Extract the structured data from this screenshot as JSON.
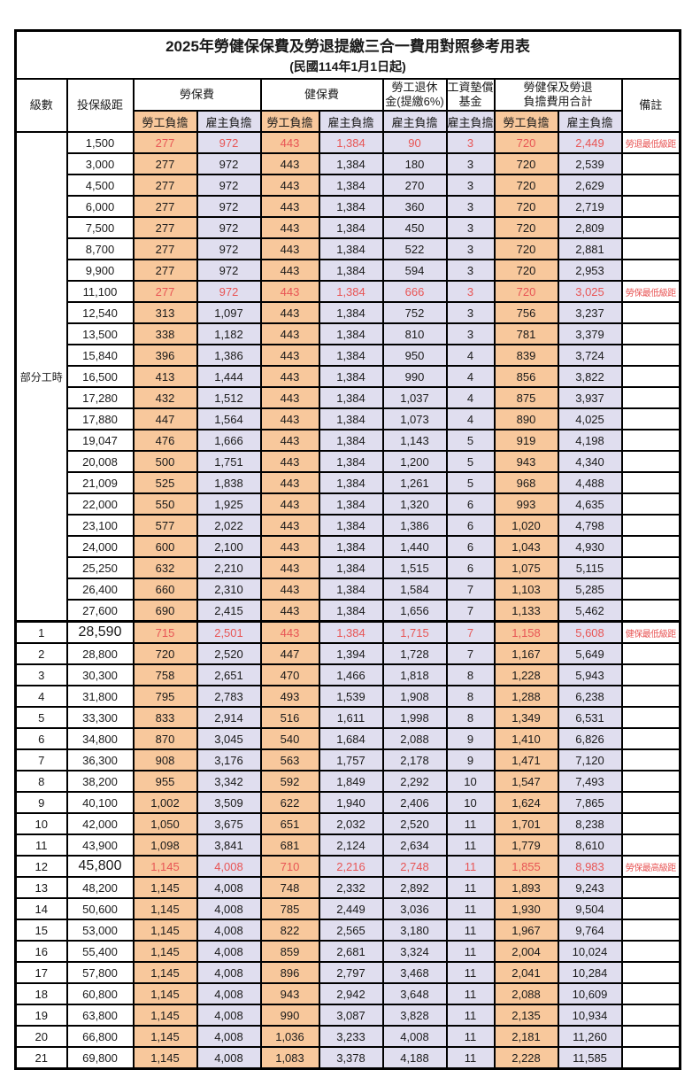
{
  "title": "2025年勞健保保費及勞退提繳三合一費用對照參考用表",
  "subtitle": "(民國114年1月1日起)",
  "colors": {
    "employee_bg": "#F8C89C",
    "employer_bg": "#E0DEEF",
    "highlight_text": "#E85555",
    "border": "#000000"
  },
  "header": {
    "level": "級數",
    "bracket": "投保級距",
    "labor_insurance": "勞保費",
    "health_insurance": "健保費",
    "pension_line1": "勞工退休",
    "pension_line2": "金(提繳6%)",
    "fund_line1": "工資墊償",
    "fund_line2": "基金",
    "total_line1": "勞健保及勞退",
    "total_line2": "負擔費用合計",
    "remark": "備註",
    "employee": "勞工負擔",
    "employer": "雇主負擔"
  },
  "part_time_label": "部分工時",
  "rows": [
    {
      "level": "",
      "bracket": "1,500",
      "li_emp": "277",
      "li_er": "972",
      "hi_emp": "443",
      "hi_er": "1,384",
      "pension": "90",
      "fund": "3",
      "tot_emp": "720",
      "tot_er": "2,449",
      "remark": "勞退最低級距",
      "hl": true
    },
    {
      "level": "",
      "bracket": "3,000",
      "li_emp": "277",
      "li_er": "972",
      "hi_emp": "443",
      "hi_er": "1,384",
      "pension": "180",
      "fund": "3",
      "tot_emp": "720",
      "tot_er": "2,539",
      "remark": ""
    },
    {
      "level": "",
      "bracket": "4,500",
      "li_emp": "277",
      "li_er": "972",
      "hi_emp": "443",
      "hi_er": "1,384",
      "pension": "270",
      "fund": "3",
      "tot_emp": "720",
      "tot_er": "2,629",
      "remark": ""
    },
    {
      "level": "",
      "bracket": "6,000",
      "li_emp": "277",
      "li_er": "972",
      "hi_emp": "443",
      "hi_er": "1,384",
      "pension": "360",
      "fund": "3",
      "tot_emp": "720",
      "tot_er": "2,719",
      "remark": ""
    },
    {
      "level": "",
      "bracket": "7,500",
      "li_emp": "277",
      "li_er": "972",
      "hi_emp": "443",
      "hi_er": "1,384",
      "pension": "450",
      "fund": "3",
      "tot_emp": "720",
      "tot_er": "2,809",
      "remark": ""
    },
    {
      "level": "",
      "bracket": "8,700",
      "li_emp": "277",
      "li_er": "972",
      "hi_emp": "443",
      "hi_er": "1,384",
      "pension": "522",
      "fund": "3",
      "tot_emp": "720",
      "tot_er": "2,881",
      "remark": ""
    },
    {
      "level": "",
      "bracket": "9,900",
      "li_emp": "277",
      "li_er": "972",
      "hi_emp": "443",
      "hi_er": "1,384",
      "pension": "594",
      "fund": "3",
      "tot_emp": "720",
      "tot_er": "2,953",
      "remark": ""
    },
    {
      "level": "",
      "bracket": "11,100",
      "li_emp": "277",
      "li_er": "972",
      "hi_emp": "443",
      "hi_er": "1,384",
      "pension": "666",
      "fund": "3",
      "tot_emp": "720",
      "tot_er": "3,025",
      "remark": "勞保最低級距",
      "hl": true
    },
    {
      "level": "",
      "bracket": "12,540",
      "li_emp": "313",
      "li_er": "1,097",
      "hi_emp": "443",
      "hi_er": "1,384",
      "pension": "752",
      "fund": "3",
      "tot_emp": "756",
      "tot_er": "3,237",
      "remark": ""
    },
    {
      "level": "",
      "bracket": "13,500",
      "li_emp": "338",
      "li_er": "1,182",
      "hi_emp": "443",
      "hi_er": "1,384",
      "pension": "810",
      "fund": "3",
      "tot_emp": "781",
      "tot_er": "3,379",
      "remark": ""
    },
    {
      "level": "",
      "bracket": "15,840",
      "li_emp": "396",
      "li_er": "1,386",
      "hi_emp": "443",
      "hi_er": "1,384",
      "pension": "950",
      "fund": "4",
      "tot_emp": "839",
      "tot_er": "3,724",
      "remark": ""
    },
    {
      "level": "",
      "bracket": "16,500",
      "li_emp": "413",
      "li_er": "1,444",
      "hi_emp": "443",
      "hi_er": "1,384",
      "pension": "990",
      "fund": "4",
      "tot_emp": "856",
      "tot_er": "3,822",
      "remark": ""
    },
    {
      "level": "",
      "bracket": "17,280",
      "li_emp": "432",
      "li_er": "1,512",
      "hi_emp": "443",
      "hi_er": "1,384",
      "pension": "1,037",
      "fund": "4",
      "tot_emp": "875",
      "tot_er": "3,937",
      "remark": ""
    },
    {
      "level": "",
      "bracket": "17,880",
      "li_emp": "447",
      "li_er": "1,564",
      "hi_emp": "443",
      "hi_er": "1,384",
      "pension": "1,073",
      "fund": "4",
      "tot_emp": "890",
      "tot_er": "4,025",
      "remark": ""
    },
    {
      "level": "",
      "bracket": "19,047",
      "li_emp": "476",
      "li_er": "1,666",
      "hi_emp": "443",
      "hi_er": "1,384",
      "pension": "1,143",
      "fund": "5",
      "tot_emp": "919",
      "tot_er": "4,198",
      "remark": ""
    },
    {
      "level": "",
      "bracket": "20,008",
      "li_emp": "500",
      "li_er": "1,751",
      "hi_emp": "443",
      "hi_er": "1,384",
      "pension": "1,200",
      "fund": "5",
      "tot_emp": "943",
      "tot_er": "4,340",
      "remark": ""
    },
    {
      "level": "",
      "bracket": "21,009",
      "li_emp": "525",
      "li_er": "1,838",
      "hi_emp": "443",
      "hi_er": "1,384",
      "pension": "1,261",
      "fund": "5",
      "tot_emp": "968",
      "tot_er": "4,488",
      "remark": ""
    },
    {
      "level": "",
      "bracket": "22,000",
      "li_emp": "550",
      "li_er": "1,925",
      "hi_emp": "443",
      "hi_er": "1,384",
      "pension": "1,320",
      "fund": "6",
      "tot_emp": "993",
      "tot_er": "4,635",
      "remark": ""
    },
    {
      "level": "",
      "bracket": "23,100",
      "li_emp": "577",
      "li_er": "2,022",
      "hi_emp": "443",
      "hi_er": "1,384",
      "pension": "1,386",
      "fund": "6",
      "tot_emp": "1,020",
      "tot_er": "4,798",
      "remark": ""
    },
    {
      "level": "",
      "bracket": "24,000",
      "li_emp": "600",
      "li_er": "2,100",
      "hi_emp": "443",
      "hi_er": "1,384",
      "pension": "1,440",
      "fund": "6",
      "tot_emp": "1,043",
      "tot_er": "4,930",
      "remark": ""
    },
    {
      "level": "",
      "bracket": "25,250",
      "li_emp": "632",
      "li_er": "2,210",
      "hi_emp": "443",
      "hi_er": "1,384",
      "pension": "1,515",
      "fund": "6",
      "tot_emp": "1,075",
      "tot_er": "5,115",
      "remark": ""
    },
    {
      "level": "",
      "bracket": "26,400",
      "li_emp": "660",
      "li_er": "2,310",
      "hi_emp": "443",
      "hi_er": "1,384",
      "pension": "1,584",
      "fund": "7",
      "tot_emp": "1,103",
      "tot_er": "5,285",
      "remark": ""
    },
    {
      "level": "",
      "bracket": "27,600",
      "li_emp": "690",
      "li_er": "2,415",
      "hi_emp": "443",
      "hi_er": "1,384",
      "pension": "1,656",
      "fund": "7",
      "tot_emp": "1,133",
      "tot_er": "5,462",
      "remark": ""
    },
    {
      "level": "1",
      "bracket": "28,590",
      "li_emp": "715",
      "li_er": "2,501",
      "hi_emp": "443",
      "hi_er": "1,384",
      "pension": "1,715",
      "fund": "7",
      "tot_emp": "1,158",
      "tot_er": "5,608",
      "remark": "健保最低級距",
      "hl": true,
      "emph": true,
      "sec": true
    },
    {
      "level": "2",
      "bracket": "28,800",
      "li_emp": "720",
      "li_er": "2,520",
      "hi_emp": "447",
      "hi_er": "1,394",
      "pension": "1,728",
      "fund": "7",
      "tot_emp": "1,167",
      "tot_er": "5,649",
      "remark": ""
    },
    {
      "level": "3",
      "bracket": "30,300",
      "li_emp": "758",
      "li_er": "2,651",
      "hi_emp": "470",
      "hi_er": "1,466",
      "pension": "1,818",
      "fund": "8",
      "tot_emp": "1,228",
      "tot_er": "5,943",
      "remark": ""
    },
    {
      "level": "4",
      "bracket": "31,800",
      "li_emp": "795",
      "li_er": "2,783",
      "hi_emp": "493",
      "hi_er": "1,539",
      "pension": "1,908",
      "fund": "8",
      "tot_emp": "1,288",
      "tot_er": "6,238",
      "remark": ""
    },
    {
      "level": "5",
      "bracket": "33,300",
      "li_emp": "833",
      "li_er": "2,914",
      "hi_emp": "516",
      "hi_er": "1,611",
      "pension": "1,998",
      "fund": "8",
      "tot_emp": "1,349",
      "tot_er": "6,531",
      "remark": ""
    },
    {
      "level": "6",
      "bracket": "34,800",
      "li_emp": "870",
      "li_er": "3,045",
      "hi_emp": "540",
      "hi_er": "1,684",
      "pension": "2,088",
      "fund": "9",
      "tot_emp": "1,410",
      "tot_er": "6,826",
      "remark": ""
    },
    {
      "level": "7",
      "bracket": "36,300",
      "li_emp": "908",
      "li_er": "3,176",
      "hi_emp": "563",
      "hi_er": "1,757",
      "pension": "2,178",
      "fund": "9",
      "tot_emp": "1,471",
      "tot_er": "7,120",
      "remark": ""
    },
    {
      "level": "8",
      "bracket": "38,200",
      "li_emp": "955",
      "li_er": "3,342",
      "hi_emp": "592",
      "hi_er": "1,849",
      "pension": "2,292",
      "fund": "10",
      "tot_emp": "1,547",
      "tot_er": "7,493",
      "remark": ""
    },
    {
      "level": "9",
      "bracket": "40,100",
      "li_emp": "1,002",
      "li_er": "3,509",
      "hi_emp": "622",
      "hi_er": "1,940",
      "pension": "2,406",
      "fund": "10",
      "tot_emp": "1,624",
      "tot_er": "7,865",
      "remark": ""
    },
    {
      "level": "10",
      "bracket": "42,000",
      "li_emp": "1,050",
      "li_er": "3,675",
      "hi_emp": "651",
      "hi_er": "2,032",
      "pension": "2,520",
      "fund": "11",
      "tot_emp": "1,701",
      "tot_er": "8,238",
      "remark": ""
    },
    {
      "level": "11",
      "bracket": "43,900",
      "li_emp": "1,098",
      "li_er": "3,841",
      "hi_emp": "681",
      "hi_er": "2,124",
      "pension": "2,634",
      "fund": "11",
      "tot_emp": "1,779",
      "tot_er": "8,610",
      "remark": ""
    },
    {
      "level": "12",
      "bracket": "45,800",
      "li_emp": "1,145",
      "li_er": "4,008",
      "hi_emp": "710",
      "hi_er": "2,216",
      "pension": "2,748",
      "fund": "11",
      "tot_emp": "1,855",
      "tot_er": "8,983",
      "remark": "勞保最高級距",
      "hl": true,
      "emph": true
    },
    {
      "level": "13",
      "bracket": "48,200",
      "li_emp": "1,145",
      "li_er": "4,008",
      "hi_emp": "748",
      "hi_er": "2,332",
      "pension": "2,892",
      "fund": "11",
      "tot_emp": "1,893",
      "tot_er": "9,243",
      "remark": ""
    },
    {
      "level": "14",
      "bracket": "50,600",
      "li_emp": "1,145",
      "li_er": "4,008",
      "hi_emp": "785",
      "hi_er": "2,449",
      "pension": "3,036",
      "fund": "11",
      "tot_emp": "1,930",
      "tot_er": "9,504",
      "remark": ""
    },
    {
      "level": "15",
      "bracket": "53,000",
      "li_emp": "1,145",
      "li_er": "4,008",
      "hi_emp": "822",
      "hi_er": "2,565",
      "pension": "3,180",
      "fund": "11",
      "tot_emp": "1,967",
      "tot_er": "9,764",
      "remark": ""
    },
    {
      "level": "16",
      "bracket": "55,400",
      "li_emp": "1,145",
      "li_er": "4,008",
      "hi_emp": "859",
      "hi_er": "2,681",
      "pension": "3,324",
      "fund": "11",
      "tot_emp": "2,004",
      "tot_er": "10,024",
      "remark": ""
    },
    {
      "level": "17",
      "bracket": "57,800",
      "li_emp": "1,145",
      "li_er": "4,008",
      "hi_emp": "896",
      "hi_er": "2,797",
      "pension": "3,468",
      "fund": "11",
      "tot_emp": "2,041",
      "tot_er": "10,284",
      "remark": ""
    },
    {
      "level": "18",
      "bracket": "60,800",
      "li_emp": "1,145",
      "li_er": "4,008",
      "hi_emp": "943",
      "hi_er": "2,942",
      "pension": "3,648",
      "fund": "11",
      "tot_emp": "2,088",
      "tot_er": "10,609",
      "remark": ""
    },
    {
      "level": "19",
      "bracket": "63,800",
      "li_emp": "1,145",
      "li_er": "4,008",
      "hi_emp": "990",
      "hi_er": "3,087",
      "pension": "3,828",
      "fund": "11",
      "tot_emp": "2,135",
      "tot_er": "10,934",
      "remark": ""
    },
    {
      "level": "20",
      "bracket": "66,800",
      "li_emp": "1,145",
      "li_er": "4,008",
      "hi_emp": "1,036",
      "hi_er": "3,233",
      "pension": "4,008",
      "fund": "11",
      "tot_emp": "2,181",
      "tot_er": "11,260",
      "remark": ""
    },
    {
      "level": "21",
      "bracket": "69,800",
      "li_emp": "1,145",
      "li_er": "4,008",
      "hi_emp": "1,083",
      "hi_er": "3,378",
      "pension": "4,188",
      "fund": "11",
      "tot_emp": "2,228",
      "tot_er": "11,585",
      "remark": ""
    }
  ]
}
